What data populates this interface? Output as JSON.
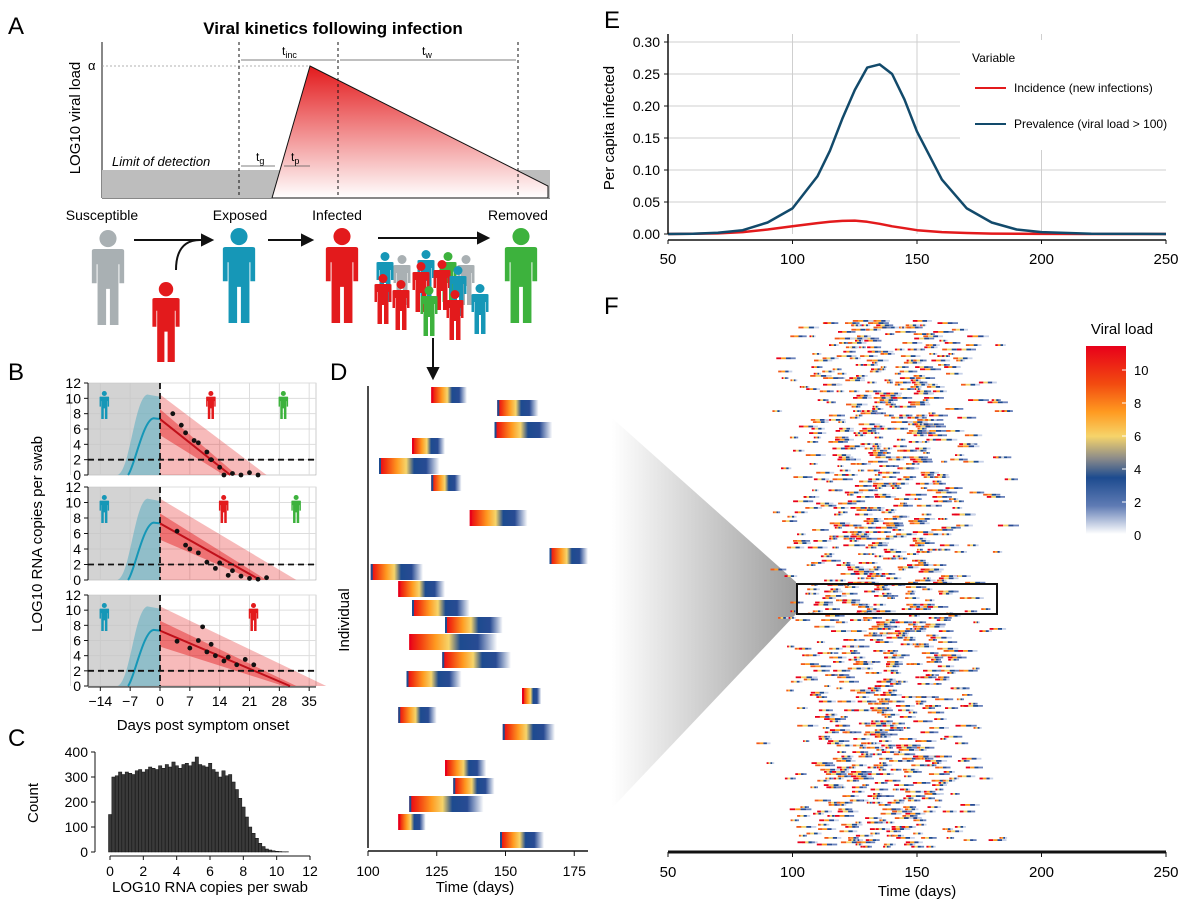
{
  "panel_letters": {
    "A": "A",
    "B": "B",
    "C": "C",
    "D": "D",
    "E": "E",
    "F": "F"
  },
  "panel_a": {
    "title": "Viral kinetics following infection",
    "ylabel": "LOG10 viral load",
    "alpha": "α",
    "limit_label": "Limit of detection",
    "t_inc": "t",
    "t_inc_sub": "inc",
    "t_w": "t",
    "t_w_sub": "w",
    "t_g": "t",
    "t_g_sub": "g",
    "t_p": "t",
    "t_p_sub": "p",
    "states": [
      "Susceptible",
      "Exposed",
      "Infected",
      "Removed"
    ],
    "colors": {
      "susceptible": "#a9b0b3",
      "exposed": "#1697b7",
      "infected": "#e31a1c",
      "removed": "#3db23d"
    }
  },
  "panel_b": {
    "ylabel": "LOG10 RNA copies per swab",
    "xlabel": "Days post symptom onset",
    "x_ticks": [
      "−14",
      "−7",
      "0",
      "7",
      "14",
      "21",
      "28",
      "35"
    ],
    "y_ticks": [
      "0",
      "2",
      "4",
      "6",
      "8",
      "10",
      "12"
    ]
  },
  "panel_c": {
    "ylabel": "Count",
    "xlabel": "LOG10 RNA copies per swab",
    "x_ticks": [
      "0",
      "2",
      "4",
      "6",
      "8",
      "10",
      "12"
    ],
    "y_ticks": [
      "0",
      "100",
      "200",
      "300",
      "400"
    ]
  },
  "panel_d": {
    "ylabel": "Individual",
    "xlabel": "Time (days)",
    "x_ticks": [
      "100",
      "125",
      "150",
      "175"
    ]
  },
  "panel_e": {
    "ylabel": "Per capita infected",
    "x_ticks": [
      "50",
      "100",
      "150",
      "200",
      "250"
    ],
    "y_ticks": [
      "0.00",
      "0.05",
      "0.10",
      "0.15",
      "0.20",
      "0.25",
      "0.30"
    ],
    "legend_title": "Variable",
    "legend": [
      "Incidence (new infections)",
      "Prevalence (viral load > 100)"
    ]
  },
  "panel_f": {
    "xlabel": "Time (days)",
    "x_ticks": [
      "50",
      "100",
      "150",
      "200",
      "250"
    ],
    "colorbar_title": "Viral load",
    "colorbar_ticks": [
      "10",
      "8",
      "6",
      "4",
      "2",
      "0"
    ]
  },
  "chart_data": [
    {
      "type": "line",
      "id": "E",
      "x": [
        50,
        60,
        70,
        80,
        90,
        100,
        110,
        115,
        120,
        125,
        130,
        135,
        140,
        145,
        150,
        160,
        170,
        180,
        190,
        200,
        220,
        250
      ],
      "series": [
        {
          "name": "Incidence (new infections)",
          "color": "#e31a1c",
          "values": [
            0.0,
            0.0005,
            0.001,
            0.003,
            0.007,
            0.012,
            0.017,
            0.019,
            0.0205,
            0.021,
            0.019,
            0.016,
            0.012,
            0.009,
            0.006,
            0.003,
            0.0015,
            0.0007,
            0.0003,
            0.0001,
            0.0,
            0.0
          ]
        },
        {
          "name": "Prevalence (viral load > 100)",
          "color": "#124a6b",
          "values": [
            0.0,
            0.0005,
            0.002,
            0.006,
            0.018,
            0.04,
            0.09,
            0.13,
            0.18,
            0.225,
            0.26,
            0.265,
            0.25,
            0.21,
            0.16,
            0.085,
            0.04,
            0.018,
            0.007,
            0.003,
            0.0005,
            0.0
          ]
        }
      ],
      "xlim": [
        50,
        250
      ],
      "ylim": [
        0,
        0.3
      ]
    },
    {
      "type": "bar",
      "id": "C",
      "categories": [
        0,
        0.2,
        0.4,
        0.6,
        0.8,
        1.0,
        1.2,
        1.4,
        1.6,
        1.8,
        2.0,
        2.2,
        2.4,
        2.6,
        2.8,
        3.0,
        3.2,
        3.4,
        3.6,
        3.8,
        4.0,
        4.2,
        4.4,
        4.6,
        4.8,
        5.0,
        5.2,
        5.4,
        5.6,
        5.8,
        6.0,
        6.2,
        6.4,
        6.6,
        6.8,
        7.0,
        7.2,
        7.4,
        7.6,
        7.8,
        8.0,
        8.2,
        8.4,
        8.6,
        8.8,
        9.0,
        9.2,
        9.4,
        9.6,
        9.8,
        10.0,
        10.2,
        10.4,
        10.6,
        10.8,
        11.0
      ],
      "values": [
        150,
        300,
        305,
        320,
        310,
        320,
        315,
        310,
        325,
        330,
        320,
        330,
        340,
        335,
        330,
        345,
        335,
        350,
        340,
        360,
        345,
        335,
        350,
        355,
        345,
        360,
        380,
        350,
        345,
        340,
        355,
        330,
        320,
        300,
        325,
        305,
        310,
        280,
        250,
        215,
        180,
        140,
        100,
        75,
        55,
        35,
        22,
        12,
        8,
        5,
        3,
        2,
        1,
        1,
        0,
        0
      ],
      "xlim": [
        0,
        12
      ],
      "ylim": [
        0,
        400
      ]
    }
  ]
}
